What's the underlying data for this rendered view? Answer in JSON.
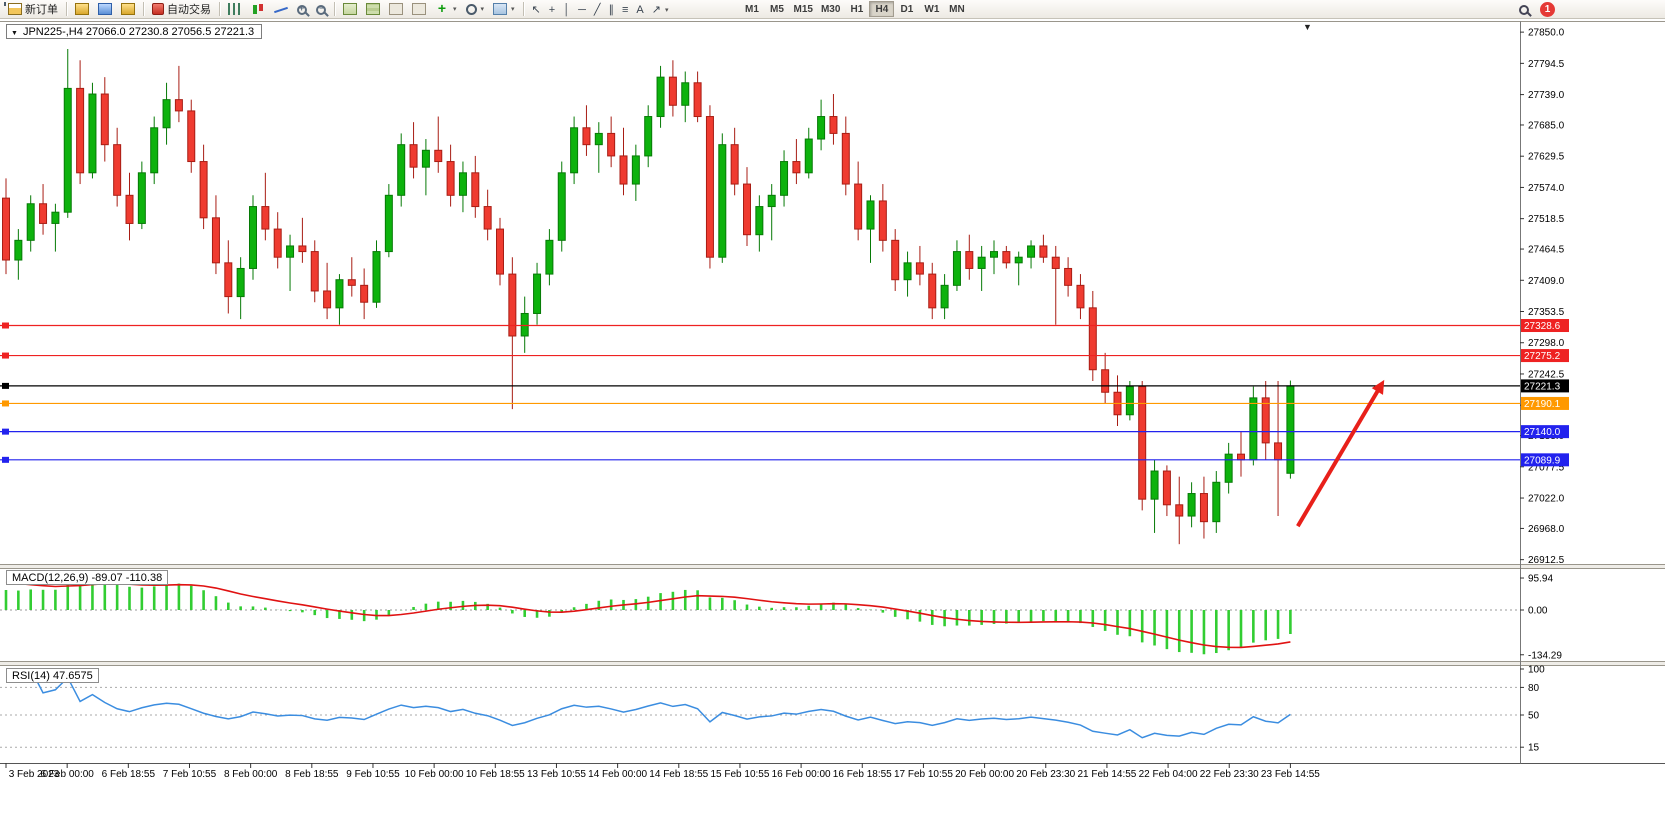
{
  "toolbar": {
    "new_order_label": "新订单",
    "auto_trading_label": "自动交易",
    "timeframes": [
      "M1",
      "M5",
      "M15",
      "M30",
      "H1",
      "H4",
      "D1",
      "W1",
      "MN"
    ],
    "active_timeframe": "H4",
    "notification_count": "1",
    "draw_tools": [
      {
        "name": "cursor-icon",
        "glyph": "↖"
      },
      {
        "name": "crosshair-icon",
        "glyph": "+"
      },
      {
        "name": "vertical-line-icon",
        "glyph": "│"
      },
      {
        "name": "horizontal-line-icon",
        "glyph": "─"
      },
      {
        "name": "trendline-icon",
        "glyph": "╱"
      },
      {
        "name": "channel-icon",
        "glyph": "∥"
      },
      {
        "name": "fibonacci-icon",
        "glyph": "≡"
      },
      {
        "name": "text-icon",
        "glyph": "A"
      },
      {
        "name": "arrows-icon",
        "glyph": "↗",
        "caret": true
      }
    ]
  },
  "chart": {
    "symbol_title": "JPN225-,H4 27066.0 27230.8 27056.5 27221.3",
    "price_axis_labels": [
      "27850.0",
      "27794.5",
      "27739.0",
      "27685.0",
      "27629.5",
      "27574.0",
      "27518.5",
      "27464.5",
      "27409.0",
      "27353.5",
      "27298.0",
      "27242.5",
      "27187.0",
      "27133.0",
      "27077.5",
      "27022.0",
      "26968.0",
      "26912.5"
    ],
    "hlines": [
      {
        "price": 27328.6,
        "color": "#ee2222",
        "label": "27328.6"
      },
      {
        "price": 27275.2,
        "color": "#ee2222",
        "label": "27275.2"
      },
      {
        "price": 27221.3,
        "color": "#000000",
        "label": "27221.3"
      },
      {
        "price": 27190.1,
        "color": "#ff9900",
        "label": "27190.1"
      },
      {
        "price": 27140.0,
        "color": "#2222ee",
        "label": "27140.0"
      },
      {
        "price": 27089.9,
        "color": "#2222ee",
        "label": "27089.9"
      }
    ],
    "time_labels": [
      "3 Feb 2023",
      "6 Feb 00:00",
      "6 Feb 18:55",
      "7 Feb 10:55",
      "8 Feb 00:00",
      "8 Feb 18:55",
      "9 Feb 10:55",
      "10 Feb 00:00",
      "10 Feb 18:55",
      "13 Feb 10:55",
      "14 Feb 00:00",
      "14 Feb 18:55",
      "15 Feb 10:55",
      "16 Feb 00:00",
      "16 Feb 18:55",
      "17 Feb 10:55",
      "20 Feb 00:00",
      "20 Feb 23:30",
      "21 Feb 14:55",
      "22 Feb 04:00",
      "22 Feb 23:30",
      "23 Feb 14:55"
    ],
    "annotation_arrow": {
      "from_index": 104.6,
      "from_price": 26972,
      "to_index": 111.6,
      "to_price": 27232,
      "color": "#e8201a"
    },
    "colors": {
      "up": "#0db20d",
      "up_stroke": "#067a06",
      "down": "#ef3b30",
      "down_stroke": "#a81d14",
      "macd_hist": "#32cd32",
      "macd_signal": "#e01212",
      "rsi": "#3b8de0",
      "bg": "#ffffff"
    }
  },
  "indicators": {
    "macd_label": "MACD(12,26,9) -89.07 -110.38",
    "macd_axis": [
      "95.94",
      "0.00",
      "-134.29"
    ],
    "rsi_label": "RSI(14) 47.6575",
    "rsi_axis": [
      "100",
      "80",
      "50",
      "15"
    ]
  },
  "chart_data": {
    "type": "candlestick",
    "symbol": "JPN225-",
    "timeframe": "H4",
    "last_ohlc": {
      "open": 27066.0,
      "high": 27230.8,
      "low": 27056.5,
      "close": 27221.3
    },
    "ohlc": [
      [
        27555,
        27590,
        27420,
        27445
      ],
      [
        27445,
        27500,
        27410,
        27480
      ],
      [
        27480,
        27560,
        27460,
        27545
      ],
      [
        27545,
        27580,
        27490,
        27510
      ],
      [
        27510,
        27545,
        27460,
        27530
      ],
      [
        27530,
        27820,
        27520,
        27750
      ],
      [
        27750,
        27800,
        27580,
        27600
      ],
      [
        27600,
        27760,
        27590,
        27740
      ],
      [
        27740,
        27770,
        27620,
        27650
      ],
      [
        27650,
        27680,
        27540,
        27560
      ],
      [
        27560,
        27600,
        27480,
        27510
      ],
      [
        27510,
        27620,
        27500,
        27600
      ],
      [
        27600,
        27700,
        27580,
        27680
      ],
      [
        27680,
        27760,
        27650,
        27730
      ],
      [
        27730,
        27790,
        27690,
        27710
      ],
      [
        27710,
        27730,
        27600,
        27620
      ],
      [
        27620,
        27650,
        27500,
        27520
      ],
      [
        27520,
        27560,
        27420,
        27440
      ],
      [
        27440,
        27480,
        27350,
        27380
      ],
      [
        27380,
        27450,
        27340,
        27430
      ],
      [
        27430,
        27560,
        27410,
        27540
      ],
      [
        27540,
        27600,
        27480,
        27500
      ],
      [
        27500,
        27530,
        27430,
        27450
      ],
      [
        27450,
        27490,
        27390,
        27470
      ],
      [
        27470,
        27520,
        27440,
        27460
      ],
      [
        27460,
        27480,
        27370,
        27390
      ],
      [
        27390,
        27440,
        27340,
        27360
      ],
      [
        27360,
        27420,
        27330,
        27410
      ],
      [
        27410,
        27450,
        27380,
        27400
      ],
      [
        27400,
        27430,
        27340,
        27370
      ],
      [
        27370,
        27480,
        27360,
        27460
      ],
      [
        27460,
        27580,
        27450,
        27560
      ],
      [
        27560,
        27670,
        27540,
        27650
      ],
      [
        27650,
        27690,
        27590,
        27610
      ],
      [
        27610,
        27660,
        27560,
        27640
      ],
      [
        27640,
        27700,
        27600,
        27620
      ],
      [
        27620,
        27650,
        27540,
        27560
      ],
      [
        27560,
        27620,
        27530,
        27600
      ],
      [
        27600,
        27630,
        27520,
        27540
      ],
      [
        27540,
        27570,
        27480,
        27500
      ],
      [
        27500,
        27520,
        27400,
        27420
      ],
      [
        27420,
        27450,
        27180,
        27310
      ],
      [
        27310,
        27380,
        27280,
        27350
      ],
      [
        27350,
        27440,
        27330,
        27420
      ],
      [
        27420,
        27500,
        27400,
        27480
      ],
      [
        27480,
        27620,
        27460,
        27600
      ],
      [
        27600,
        27700,
        27580,
        27680
      ],
      [
        27680,
        27720,
        27630,
        27650
      ],
      [
        27650,
        27690,
        27600,
        27670
      ],
      [
        27670,
        27700,
        27610,
        27630
      ],
      [
        27630,
        27680,
        27560,
        27580
      ],
      [
        27580,
        27650,
        27550,
        27630
      ],
      [
        27630,
        27720,
        27610,
        27700
      ],
      [
        27700,
        27790,
        27680,
        27770
      ],
      [
        27770,
        27800,
        27700,
        27720
      ],
      [
        27720,
        27780,
        27690,
        27760
      ],
      [
        27760,
        27780,
        27690,
        27700
      ],
      [
        27700,
        27720,
        27430,
        27450
      ],
      [
        27450,
        27670,
        27440,
        27650
      ],
      [
        27650,
        27680,
        27560,
        27580
      ],
      [
        27580,
        27610,
        27470,
        27490
      ],
      [
        27490,
        27560,
        27460,
        27540
      ],
      [
        27540,
        27580,
        27480,
        27560
      ],
      [
        27560,
        27640,
        27540,
        27620
      ],
      [
        27620,
        27660,
        27580,
        27600
      ],
      [
        27600,
        27680,
        27590,
        27660
      ],
      [
        27660,
        27730,
        27640,
        27700
      ],
      [
        27700,
        27740,
        27650,
        27670
      ],
      [
        27670,
        27700,
        27560,
        27580
      ],
      [
        27580,
        27620,
        27480,
        27500
      ],
      [
        27500,
        27560,
        27440,
        27550
      ],
      [
        27550,
        27580,
        27460,
        27480
      ],
      [
        27480,
        27500,
        27390,
        27410
      ],
      [
        27410,
        27460,
        27380,
        27440
      ],
      [
        27440,
        27470,
        27400,
        27420
      ],
      [
        27420,
        27440,
        27340,
        27360
      ],
      [
        27360,
        27420,
        27340,
        27400
      ],
      [
        27400,
        27480,
        27390,
        27460
      ],
      [
        27460,
        27490,
        27410,
        27430
      ],
      [
        27430,
        27470,
        27390,
        27450
      ],
      [
        27450,
        27480,
        27420,
        27460
      ],
      [
        27460,
        27470,
        27430,
        27440
      ],
      [
        27440,
        27460,
        27400,
        27450
      ],
      [
        27450,
        27480,
        27430,
        27470
      ],
      [
        27470,
        27490,
        27440,
        27450
      ],
      [
        27450,
        27470,
        27330,
        27430
      ],
      [
        27430,
        27450,
        27380,
        27400
      ],
      [
        27400,
        27420,
        27340,
        27360
      ],
      [
        27360,
        27390,
        27230,
        27250
      ],
      [
        27250,
        27280,
        27190,
        27210
      ],
      [
        27210,
        27240,
        27150,
        27170
      ],
      [
        27170,
        27230,
        27160,
        27220
      ],
      [
        27220,
        27230,
        27000,
        27020
      ],
      [
        27020,
        27090,
        26960,
        27070
      ],
      [
        27070,
        27080,
        26990,
        27010
      ],
      [
        27010,
        27060,
        26940,
        26990
      ],
      [
        26990,
        27050,
        26970,
        27030
      ],
      [
        27030,
        27060,
        26950,
        26980
      ],
      [
        26980,
        27070,
        26960,
        27050
      ],
      [
        27050,
        27120,
        27030,
        27100
      ],
      [
        27100,
        27140,
        27060,
        27090
      ],
      [
        27090,
        27220,
        27080,
        27200
      ],
      [
        27200,
        27230,
        27090,
        27120
      ],
      [
        27120,
        27230,
        26990,
        27090
      ],
      [
        27066.0,
        27230.8,
        27056.5,
        27221.3
      ]
    ]
  }
}
